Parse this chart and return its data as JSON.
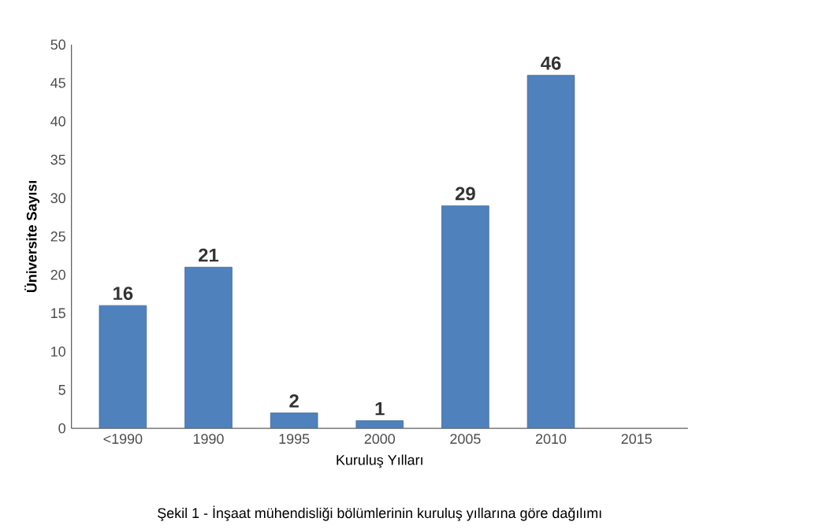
{
  "chart_data": {
    "type": "bar",
    "categories": [
      "<1990",
      "1990",
      "1995",
      "2000",
      "2005",
      "2010",
      "2015"
    ],
    "values": [
      16,
      21,
      2,
      1,
      29,
      46,
      null
    ],
    "color": "#4f81bd",
    "ylim": [
      0,
      50
    ],
    "yticks": [
      0,
      5,
      10,
      15,
      20,
      25,
      30,
      35,
      40,
      45,
      50
    ],
    "xlabel": "Kuruluş Yılları",
    "ylabel": "Üniversite Sayısı",
    "data_labels": true,
    "annotations": [
      "Şekil 1 - İnşaat mühendisliği bölümlerinin kuruluş yıllarına göre dağılımı"
    ]
  }
}
